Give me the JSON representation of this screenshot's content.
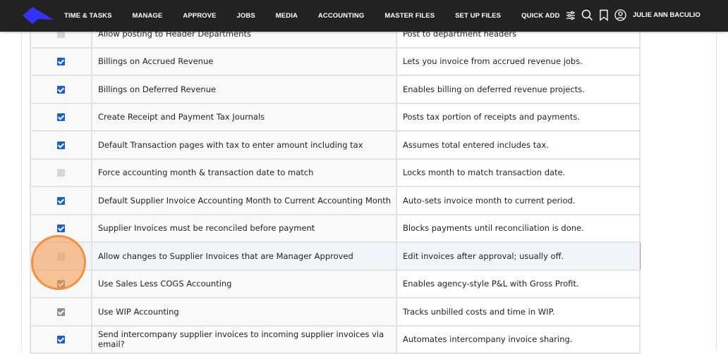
{
  "nav": {
    "items": [
      "TIME & TASKS",
      "MANAGE",
      "APPROVE",
      "JOBS",
      "MEDIA",
      "ACCOUNTING",
      "MASTER FILES",
      "SET UP FILES",
      "QUICK ADD"
    ],
    "user": "JULIE ANN BACULIO",
    "icons": [
      "filter-sliders-icon",
      "search-icon",
      "bookmark-icon",
      "user-circle-icon"
    ],
    "brand_color": "#3333ff"
  },
  "rows": [
    {
      "label": "Allow posting to Header Departments",
      "info": "Post to department headers",
      "checked": false,
      "disabled": false
    },
    {
      "label": "Billings on Accrued Revenue",
      "info": "Lets you invoice from accrued revenue jobs.",
      "checked": true,
      "disabled": false
    },
    {
      "label": "Billings on Deferred Revenue",
      "info": "Enables billing on deferred revenue projects.",
      "checked": true,
      "disabled": false
    },
    {
      "label": "Create Receipt and Payment Tax Journals",
      "info": "Posts tax portion of receipts and payments.",
      "checked": true,
      "disabled": false
    },
    {
      "label": "Default Transaction pages with tax to enter amount including tax",
      "info": "Assumes total entered includes tax.",
      "checked": true,
      "disabled": false
    },
    {
      "label": "Force accounting month & transaction date to match",
      "info": "Locks month to match transaction date.",
      "checked": false,
      "disabled": false
    },
    {
      "label": "Default Supplier Invoice Accounting Month to Current Accounting Month",
      "info": "Auto-sets invoice month to current period.",
      "checked": true,
      "disabled": false
    },
    {
      "label": "Supplier Invoices must be reconciled before payment",
      "info": "Blocks payments until reconciliation is done.",
      "checked": true,
      "disabled": false
    },
    {
      "label": "Allow changes to Supplier Invoices that are Manager Approved",
      "info": "Edit invoices after approval; usually off.",
      "checked": false,
      "disabled": false,
      "highlighted": true
    },
    {
      "label": "Use Sales Less COGS Accounting",
      "info": "Enables agency-style P&L with Gross Profit.",
      "checked": true,
      "disabled": true
    },
    {
      "label": "Use WIP Accounting",
      "info": "Tracks unbilled costs and time in WIP.",
      "checked": true,
      "disabled": true
    },
    {
      "label": "Send intercompany supplier invoices to incoming supplier invoices via email?",
      "info": "Automates intercompany invoice sharing.",
      "checked": true,
      "disabled": false
    }
  ]
}
